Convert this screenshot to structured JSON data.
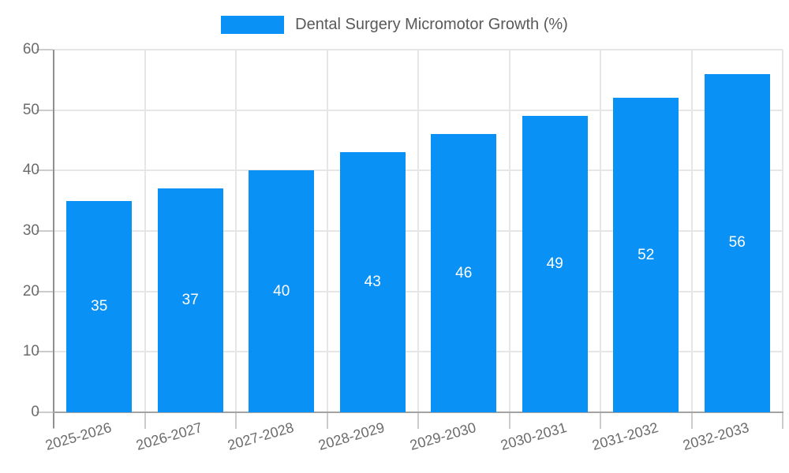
{
  "legend": {
    "swatch_color": "#0a91f5"
  },
  "chart_data": {
    "type": "bar",
    "title": "Dental Surgery Micromotor Growth (%)",
    "categories": [
      "2025-2026",
      "2026-2027",
      "2027-2028",
      "2028-2029",
      "2029-2030",
      "2030-2031",
      "2031-2032",
      "2032-2033"
    ],
    "values": [
      35,
      37,
      40,
      43,
      46,
      49,
      52,
      56
    ],
    "xlabel": "",
    "ylabel": "",
    "ylim": [
      0,
      60
    ],
    "yticks": [
      0,
      10,
      20,
      30,
      40,
      50,
      60
    ],
    "grid": true,
    "legend_position": "top",
    "bar_color": "#0a91f5",
    "value_label_color": "#ffffff",
    "axis_text_color": "#6b6b6b"
  }
}
